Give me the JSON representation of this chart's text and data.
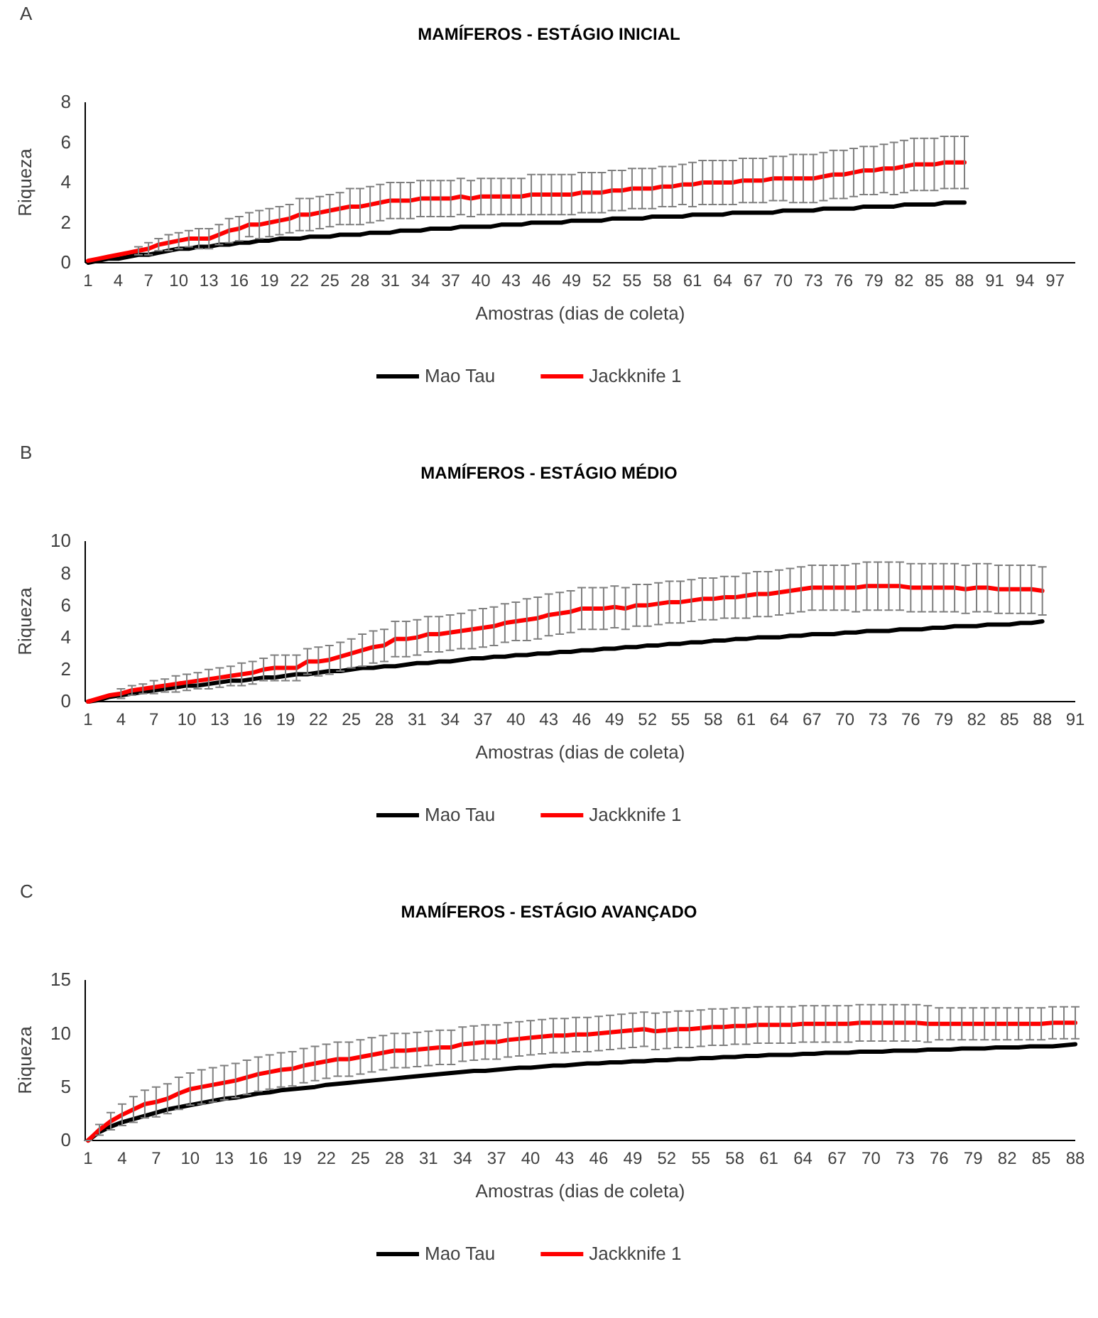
{
  "chart_data": [
    {
      "type": "line",
      "title": "MAMÍFEROS - ESTÁGIO INICIAL",
      "xlabel": "Amostras (dias de coleta)",
      "ylabel": "Riqueza",
      "annotations": [
        "A"
      ],
      "categories": [
        "1",
        null,
        null,
        "4",
        null,
        null,
        "7",
        null,
        null,
        "10",
        null,
        null,
        "13",
        null,
        null,
        "16",
        null,
        null,
        "19",
        null,
        null,
        "22",
        null,
        null,
        "25",
        null,
        null,
        "28",
        null,
        null,
        "31",
        null,
        null,
        "34",
        null,
        null,
        "37",
        null,
        null,
        "40",
        null,
        null,
        "43",
        null,
        null,
        "46",
        null,
        null,
        "49",
        null,
        null,
        "52",
        null,
        null,
        "55",
        null,
        null,
        "58",
        null,
        null,
        "61",
        null,
        null,
        "64",
        null,
        null,
        "67",
        null,
        null,
        "70",
        null,
        null,
        "73",
        null,
        null,
        "76",
        null,
        null,
        "79",
        null,
        null,
        "82",
        null,
        null,
        "85",
        null,
        null,
        "88",
        null,
        null,
        "91",
        null,
        null,
        "94",
        null,
        null,
        "97",
        null,
        null
      ],
      "ylim": [
        0,
        8
      ],
      "yticks": [
        0,
        2,
        4,
        6,
        8
      ],
      "grid": false,
      "legend": "bottom",
      "series": [
        {
          "name": "Mao Tau",
          "color": "#000000",
          "values": [
            0,
            0.1,
            0.2,
            0.2,
            0.3,
            0.4,
            0.4,
            0.5,
            0.6,
            0.7,
            0.7,
            0.8,
            0.8,
            0.9,
            0.9,
            1.0,
            1.0,
            1.1,
            1.1,
            1.2,
            1.2,
            1.2,
            1.3,
            1.3,
            1.3,
            1.4,
            1.4,
            1.4,
            1.5,
            1.5,
            1.5,
            1.6,
            1.6,
            1.6,
            1.7,
            1.7,
            1.7,
            1.8,
            1.8,
            1.8,
            1.8,
            1.9,
            1.9,
            1.9,
            2.0,
            2.0,
            2.0,
            2.0,
            2.1,
            2.1,
            2.1,
            2.1,
            2.2,
            2.2,
            2.2,
            2.2,
            2.3,
            2.3,
            2.3,
            2.3,
            2.4,
            2.4,
            2.4,
            2.4,
            2.5,
            2.5,
            2.5,
            2.5,
            2.5,
            2.6,
            2.6,
            2.6,
            2.6,
            2.7,
            2.7,
            2.7,
            2.7,
            2.8,
            2.8,
            2.8,
            2.8,
            2.9,
            2.9,
            2.9,
            2.9,
            3.0,
            3.0,
            3.0,
            null,
            null,
            null,
            null,
            null,
            null,
            null,
            null,
            null,
            null,
            null
          ]
        },
        {
          "name": "Jackknife 1",
          "color": "#ff0000",
          "values": [
            0.1,
            0.2,
            0.3,
            0.4,
            0.5,
            0.6,
            0.7,
            0.9,
            1.0,
            1.1,
            1.2,
            1.2,
            1.2,
            1.4,
            1.6,
            1.7,
            1.9,
            1.9,
            2.0,
            2.1,
            2.2,
            2.4,
            2.4,
            2.5,
            2.6,
            2.7,
            2.8,
            2.8,
            2.9,
            3.0,
            3.1,
            3.1,
            3.1,
            3.2,
            3.2,
            3.2,
            3.2,
            3.3,
            3.2,
            3.3,
            3.3,
            3.3,
            3.3,
            3.3,
            3.4,
            3.4,
            3.4,
            3.4,
            3.4,
            3.5,
            3.5,
            3.5,
            3.6,
            3.6,
            3.7,
            3.7,
            3.7,
            3.8,
            3.8,
            3.9,
            3.9,
            4.0,
            4.0,
            4.0,
            4.0,
            4.1,
            4.1,
            4.1,
            4.2,
            4.2,
            4.2,
            4.2,
            4.2,
            4.3,
            4.4,
            4.4,
            4.5,
            4.6,
            4.6,
            4.7,
            4.7,
            4.8,
            4.9,
            4.9,
            4.9,
            5.0,
            5.0,
            5.0,
            null,
            null,
            null,
            null,
            null,
            null,
            null,
            null,
            null,
            null,
            null
          ],
          "errors": [
            null,
            null,
            null,
            null,
            null,
            0.2,
            0.3,
            0.3,
            0.4,
            0.4,
            0.4,
            0.5,
            0.5,
            0.5,
            0.6,
            0.6,
            0.6,
            0.7,
            0.7,
            0.7,
            0.7,
            0.8,
            0.8,
            0.8,
            0.8,
            0.8,
            0.9,
            0.9,
            0.9,
            0.9,
            0.9,
            0.9,
            0.9,
            0.9,
            0.9,
            0.9,
            0.9,
            0.9,
            0.9,
            0.9,
            0.9,
            0.9,
            0.9,
            0.9,
            1.0,
            1.0,
            1.0,
            1.0,
            1.0,
            1.0,
            1.0,
            1.0,
            1.0,
            1.0,
            1.0,
            1.0,
            1.0,
            1.0,
            1.0,
            1.0,
            1.1,
            1.1,
            1.1,
            1.1,
            1.1,
            1.1,
            1.1,
            1.1,
            1.1,
            1.1,
            1.2,
            1.2,
            1.2,
            1.2,
            1.2,
            1.2,
            1.2,
            1.2,
            1.2,
            1.2,
            1.3,
            1.3,
            1.3,
            1.3,
            1.3,
            1.3,
            1.3,
            1.3,
            null,
            null,
            null,
            null,
            null,
            null,
            null,
            null,
            null,
            null,
            null
          ]
        }
      ]
    },
    {
      "type": "line",
      "title": "MAMÍFEROS - ESTÁGIO MÉDIO",
      "xlabel": "Amostras (dias de coleta)",
      "ylabel": "Riqueza",
      "annotations": [
        "B"
      ],
      "categories": [
        "1",
        null,
        null,
        "4",
        null,
        null,
        "7",
        null,
        null,
        "10",
        null,
        null,
        "13",
        null,
        null,
        "16",
        null,
        null,
        "19",
        null,
        null,
        "22",
        null,
        null,
        "25",
        null,
        null,
        "28",
        null,
        null,
        "31",
        null,
        null,
        "34",
        null,
        null,
        "37",
        null,
        null,
        "40",
        null,
        null,
        "43",
        null,
        null,
        "46",
        null,
        null,
        "49",
        null,
        null,
        "52",
        null,
        null,
        "55",
        null,
        null,
        "58",
        null,
        null,
        "61",
        null,
        null,
        "64",
        null,
        null,
        "67",
        null,
        null,
        "70",
        null,
        null,
        "73",
        null,
        null,
        "76",
        null,
        null,
        "79",
        null,
        null,
        "82",
        null,
        null,
        "85",
        null,
        null,
        "88",
        null,
        null,
        "91"
      ],
      "ylim": [
        0,
        10
      ],
      "yticks": [
        0,
        2,
        4,
        6,
        8,
        10
      ],
      "grid": false,
      "legend": "bottom",
      "series": [
        {
          "name": "Mao Tau",
          "color": "#000000",
          "values": [
            0,
            0.1,
            0.3,
            0.4,
            0.5,
            0.6,
            0.7,
            0.8,
            0.9,
            1.0,
            1.0,
            1.1,
            1.2,
            1.3,
            1.3,
            1.4,
            1.5,
            1.5,
            1.6,
            1.7,
            1.7,
            1.8,
            1.9,
            1.9,
            2.0,
            2.1,
            2.1,
            2.2,
            2.2,
            2.3,
            2.4,
            2.4,
            2.5,
            2.5,
            2.6,
            2.7,
            2.7,
            2.8,
            2.8,
            2.9,
            2.9,
            3.0,
            3.0,
            3.1,
            3.1,
            3.2,
            3.2,
            3.3,
            3.3,
            3.4,
            3.4,
            3.5,
            3.5,
            3.6,
            3.6,
            3.7,
            3.7,
            3.8,
            3.8,
            3.9,
            3.9,
            4.0,
            4.0,
            4.0,
            4.1,
            4.1,
            4.2,
            4.2,
            4.2,
            4.3,
            4.3,
            4.4,
            4.4,
            4.4,
            4.5,
            4.5,
            4.5,
            4.6,
            4.6,
            4.7,
            4.7,
            4.7,
            4.8,
            4.8,
            4.8,
            4.9,
            4.9,
            5.0,
            null,
            null,
            null
          ]
        },
        {
          "name": "Jackknife 1",
          "color": "#ff0000",
          "values": [
            0,
            0.2,
            0.4,
            0.5,
            0.7,
            0.8,
            0.9,
            1.0,
            1.1,
            1.2,
            1.3,
            1.4,
            1.5,
            1.6,
            1.7,
            1.8,
            2.0,
            2.1,
            2.1,
            2.1,
            2.5,
            2.5,
            2.6,
            2.8,
            3.0,
            3.2,
            3.4,
            3.5,
            3.9,
            3.9,
            4.0,
            4.2,
            4.2,
            4.3,
            4.4,
            4.5,
            4.6,
            4.7,
            4.9,
            5.0,
            5.1,
            5.2,
            5.4,
            5.5,
            5.6,
            5.8,
            5.8,
            5.8,
            5.9,
            5.8,
            6.0,
            6.0,
            6.1,
            6.2,
            6.2,
            6.3,
            6.4,
            6.4,
            6.5,
            6.5,
            6.6,
            6.7,
            6.7,
            6.8,
            6.9,
            7.0,
            7.1,
            7.1,
            7.1,
            7.1,
            7.1,
            7.2,
            7.2,
            7.2,
            7.2,
            7.1,
            7.1,
            7.1,
            7.1,
            7.1,
            7.0,
            7.1,
            7.1,
            7.0,
            7.0,
            7.0,
            7.0,
            6.9,
            null,
            null,
            null
          ],
          "errors": [
            null,
            null,
            null,
            0.3,
            0.3,
            0.3,
            0.4,
            0.4,
            0.5,
            0.5,
            0.5,
            0.6,
            0.6,
            0.6,
            0.7,
            0.7,
            0.7,
            0.8,
            0.8,
            0.8,
            0.8,
            0.9,
            0.9,
            0.9,
            0.9,
            1.0,
            1.0,
            1.0,
            1.1,
            1.1,
            1.1,
            1.1,
            1.1,
            1.1,
            1.1,
            1.2,
            1.2,
            1.2,
            1.2,
            1.2,
            1.3,
            1.3,
            1.3,
            1.3,
            1.3,
            1.3,
            1.3,
            1.3,
            1.3,
            1.3,
            1.3,
            1.3,
            1.3,
            1.3,
            1.3,
            1.3,
            1.3,
            1.3,
            1.3,
            1.3,
            1.4,
            1.4,
            1.4,
            1.4,
            1.4,
            1.4,
            1.4,
            1.4,
            1.4,
            1.4,
            1.5,
            1.5,
            1.5,
            1.5,
            1.5,
            1.5,
            1.5,
            1.5,
            1.5,
            1.5,
            1.5,
            1.5,
            1.5,
            1.5,
            1.5,
            1.5,
            1.5,
            1.5,
            null,
            null,
            null
          ]
        }
      ]
    },
    {
      "type": "line",
      "title": "MAMÍFEROS - ESTÁGIO AVANÇADO",
      "xlabel": "Amostras (dias de coleta)",
      "ylabel": "Riqueza",
      "annotations": [
        "C"
      ],
      "categories": [
        "1",
        null,
        null,
        "4",
        null,
        null,
        "7",
        null,
        null,
        "10",
        null,
        null,
        "13",
        null,
        null,
        "16",
        null,
        null,
        "19",
        null,
        null,
        "22",
        null,
        null,
        "25",
        null,
        null,
        "28",
        null,
        null,
        "31",
        null,
        null,
        "34",
        null,
        null,
        "37",
        null,
        null,
        "40",
        null,
        null,
        "43",
        null,
        null,
        "46",
        null,
        null,
        "49",
        null,
        null,
        "52",
        null,
        null,
        "55",
        null,
        null,
        "58",
        null,
        null,
        "61",
        null,
        null,
        "64",
        null,
        null,
        "67",
        null,
        null,
        "70",
        null,
        null,
        "73",
        null,
        null,
        "76",
        null,
        null,
        "79",
        null,
        null,
        "82",
        null,
        null,
        "85",
        null,
        null,
        "88"
      ],
      "ylim": [
        0,
        15
      ],
      "yticks": [
        0,
        5,
        10,
        15
      ],
      "grid": false,
      "legend": "bottom",
      "series": [
        {
          "name": "Mao Tau",
          "color": "#000000",
          "values": [
            0,
            0.8,
            1.3,
            1.7,
            2.0,
            2.3,
            2.6,
            2.9,
            3.1,
            3.3,
            3.5,
            3.7,
            3.9,
            4.0,
            4.2,
            4.4,
            4.5,
            4.7,
            4.8,
            4.9,
            5.0,
            5.2,
            5.3,
            5.4,
            5.5,
            5.6,
            5.7,
            5.8,
            5.9,
            6.0,
            6.1,
            6.2,
            6.3,
            6.4,
            6.5,
            6.5,
            6.6,
            6.7,
            6.8,
            6.8,
            6.9,
            7.0,
            7.0,
            7.1,
            7.2,
            7.2,
            7.3,
            7.3,
            7.4,
            7.4,
            7.5,
            7.5,
            7.6,
            7.6,
            7.7,
            7.7,
            7.8,
            7.8,
            7.9,
            7.9,
            8.0,
            8.0,
            8.0,
            8.1,
            8.1,
            8.2,
            8.2,
            8.2,
            8.3,
            8.3,
            8.3,
            8.4,
            8.4,
            8.4,
            8.5,
            8.5,
            8.5,
            8.6,
            8.6,
            8.6,
            8.7,
            8.7,
            8.7,
            8.8,
            8.8,
            8.8,
            8.9,
            9.0
          ]
        },
        {
          "name": "Jackknife 1",
          "color": "#ff0000",
          "values": [
            0,
            1.0,
            1.8,
            2.4,
            2.9,
            3.4,
            3.6,
            3.9,
            4.4,
            4.8,
            5.0,
            5.2,
            5.4,
            5.6,
            5.9,
            6.2,
            6.4,
            6.6,
            6.7,
            7.0,
            7.2,
            7.4,
            7.6,
            7.6,
            7.8,
            8.0,
            8.2,
            8.4,
            8.4,
            8.5,
            8.6,
            8.7,
            8.7,
            9.0,
            9.1,
            9.2,
            9.2,
            9.4,
            9.5,
            9.6,
            9.7,
            9.8,
            9.8,
            9.9,
            9.9,
            10.0,
            10.1,
            10.2,
            10.3,
            10.4,
            10.2,
            10.3,
            10.4,
            10.4,
            10.5,
            10.6,
            10.6,
            10.7,
            10.7,
            10.8,
            10.8,
            10.8,
            10.8,
            10.9,
            10.9,
            10.9,
            10.9,
            10.9,
            11.0,
            11.0,
            11.0,
            11.0,
            11.0,
            11.0,
            10.9,
            10.9,
            10.9,
            10.9,
            10.9,
            10.9,
            10.9,
            10.9,
            10.9,
            10.9,
            10.9,
            11.0,
            11.0,
            11.0
          ],
          "errors": [
            0,
            0.5,
            0.8,
            1.0,
            1.2,
            1.3,
            1.4,
            1.4,
            1.5,
            1.5,
            1.6,
            1.6,
            1.6,
            1.6,
            1.6,
            1.6,
            1.6,
            1.6,
            1.6,
            1.6,
            1.6,
            1.6,
            1.6,
            1.6,
            1.6,
            1.6,
            1.6,
            1.6,
            1.6,
            1.6,
            1.6,
            1.6,
            1.6,
            1.6,
            1.6,
            1.6,
            1.6,
            1.6,
            1.6,
            1.6,
            1.6,
            1.6,
            1.6,
            1.6,
            1.6,
            1.6,
            1.6,
            1.6,
            1.6,
            1.6,
            1.7,
            1.7,
            1.7,
            1.7,
            1.7,
            1.7,
            1.7,
            1.7,
            1.7,
            1.7,
            1.7,
            1.7,
            1.7,
            1.7,
            1.7,
            1.7,
            1.7,
            1.7,
            1.7,
            1.7,
            1.7,
            1.7,
            1.7,
            1.7,
            1.7,
            1.5,
            1.5,
            1.5,
            1.5,
            1.5,
            1.5,
            1.5,
            1.5,
            1.5,
            1.5,
            1.5,
            1.5,
            1.5
          ]
        }
      ]
    }
  ]
}
